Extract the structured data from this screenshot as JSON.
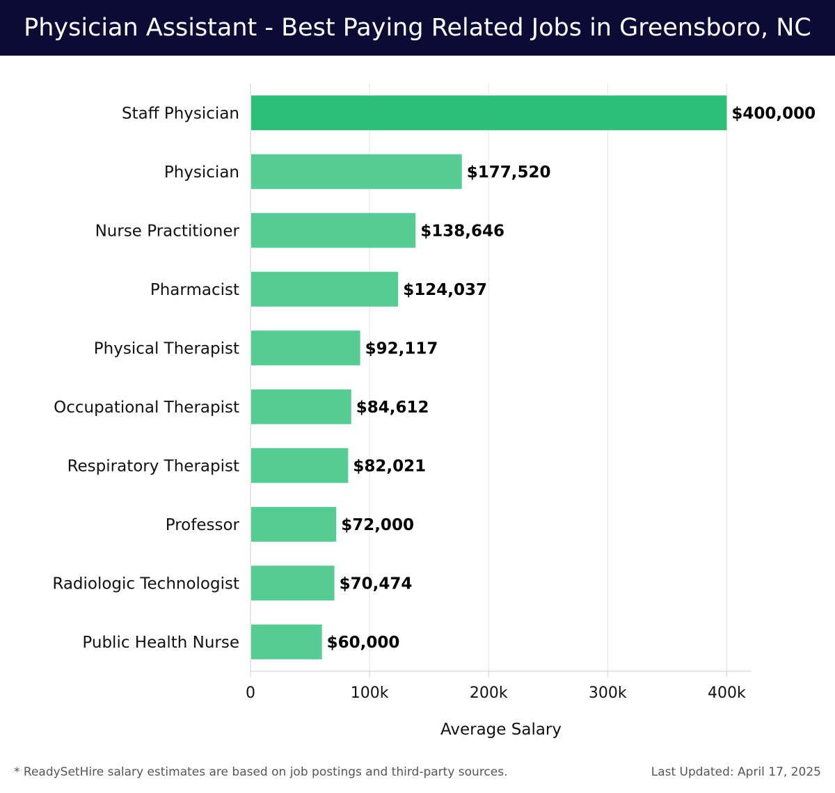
{
  "header": {
    "title": "Physician Assistant - Best Paying Related Jobs in Greensboro, NC"
  },
  "footer": {
    "note": "* ReadySetHire salary estimates are based on job postings and third-party sources.",
    "updated": "Last Updated: April 17, 2025"
  },
  "colors": {
    "header_bg": "#0b0b35",
    "top_bar": "#2bbf78",
    "bar": "#55cc93",
    "grid": "#e3e3e3",
    "axis": "#cccccc"
  },
  "chart_data": {
    "type": "bar",
    "orientation": "horizontal",
    "categories": [
      "Staff Physician",
      "Physician",
      "Nurse Practitioner",
      "Pharmacist",
      "Physical Therapist",
      "Occupational Therapist",
      "Respiratory Therapist",
      "Professor",
      "Radiologic Technologist",
      "Public Health Nurse"
    ],
    "values": [
      400000,
      177520,
      138646,
      124037,
      92117,
      84612,
      82021,
      72000,
      70474,
      60000
    ],
    "value_labels": [
      "$400,000",
      "$177,520",
      "$138,646",
      "$124,037",
      "$92,117",
      "$84,612",
      "$82,021",
      "$72,000",
      "$70,474",
      "$60,000"
    ],
    "xlabel": "Average Salary",
    "ylabel": "",
    "xlim": [
      0,
      420000
    ],
    "xticks": [
      0,
      100000,
      200000,
      300000,
      400000
    ],
    "xtick_labels": [
      "0",
      "100k",
      "200k",
      "300k",
      "400k"
    ],
    "grid": true,
    "legend": "none"
  }
}
